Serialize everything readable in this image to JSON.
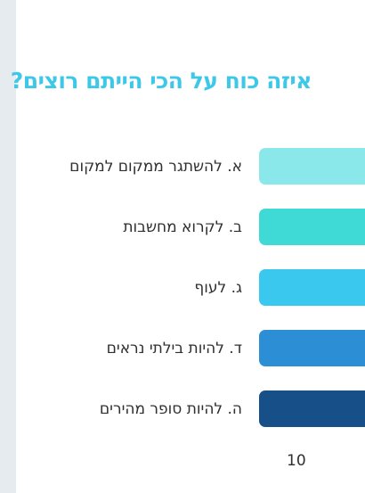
{
  "chart_data": {
    "type": "bar",
    "orientation": "horizontal",
    "title": "איזה כוח על הכי הייתם רוצים?",
    "categories": [
      "א. להשתגר ממקום למקום",
      "ב. לקרוא מחשבות",
      "ג. לעוף",
      "ד. להיות בילתי נראים",
      "ה. להיות סופר מהירים"
    ],
    "colors": [
      "#8ae8ea",
      "#3fd9d6",
      "#3bc8ee",
      "#2c8fd6",
      "#175089"
    ],
    "x_ticks": [
      "10"
    ],
    "grid": false,
    "legend": "none"
  }
}
